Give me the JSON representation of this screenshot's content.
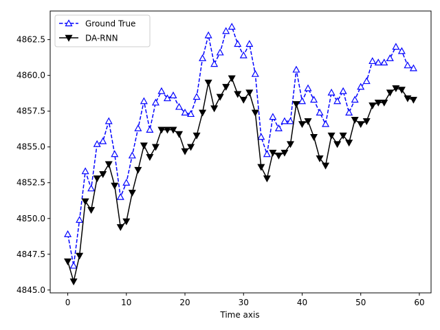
{
  "chart_data": {
    "type": "line",
    "title": "",
    "xlabel": "Time axis",
    "ylabel": "",
    "xlim": [
      -3,
      62
    ],
    "ylim": [
      4844.8,
      4864.5
    ],
    "xticks": [
      0,
      10,
      20,
      30,
      40,
      50,
      60
    ],
    "yticks": [
      4845.0,
      4847.5,
      4850.0,
      4852.5,
      4855.0,
      4857.5,
      4860.0,
      4862.5
    ],
    "grid": false,
    "legend": "upper-left",
    "x": [
      0,
      1,
      2,
      3,
      4,
      5,
      6,
      7,
      8,
      9,
      10,
      11,
      12,
      13,
      14,
      15,
      16,
      17,
      18,
      19,
      20,
      21,
      22,
      23,
      24,
      25,
      26,
      27,
      28,
      29,
      30,
      31,
      32,
      33,
      34,
      35,
      36,
      37,
      38,
      39,
      40,
      41,
      42,
      43,
      44,
      45,
      46,
      47,
      48,
      49,
      50,
      51,
      52,
      53,
      54,
      55,
      56,
      57,
      58,
      59
    ],
    "series": [
      {
        "name": "Ground True",
        "color": "#0000ff",
        "style": "dashed",
        "marker": "triangle-up-open",
        "values": [
          4848.9,
          4846.7,
          4849.9,
          4853.3,
          4852.1,
          4855.2,
          4855.4,
          4856.8,
          4854.5,
          4851.5,
          4852.5,
          4854.4,
          4856.3,
          4858.2,
          4856.2,
          4858.1,
          4858.9,
          4858.4,
          4858.6,
          4857.8,
          4857.4,
          4857.3,
          4858.5,
          4861.2,
          4862.8,
          4860.8,
          4861.6,
          4863.1,
          4863.4,
          4862.2,
          4861.4,
          4862.2,
          4860.1,
          4855.7,
          4854.5,
          4857.1,
          4856.3,
          4856.8,
          4856.8,
          4860.4,
          4858.2,
          4859.1,
          4858.3,
          4857.4,
          4856.6,
          4858.8,
          4858.2,
          4858.9,
          4857.4,
          4858.3,
          4859.2,
          4859.6,
          4861.0,
          4860.9,
          4860.9,
          4861.2,
          4862.0,
          4861.7,
          4860.7,
          4860.5
        ]
      },
      {
        "name": "DA-RNN",
        "color": "#000000",
        "style": "solid",
        "marker": "triangle-down-filled",
        "values": [
          4847.0,
          4845.6,
          4847.4,
          4851.2,
          4850.6,
          4852.8,
          4853.1,
          4853.8,
          4852.3,
          4849.4,
          4849.8,
          4851.8,
          4853.4,
          4855.1,
          4854.3,
          4855.0,
          4856.2,
          4856.2,
          4856.2,
          4855.9,
          4854.7,
          4855.0,
          4855.8,
          4857.4,
          4859.5,
          4857.7,
          4858.5,
          4859.2,
          4859.8,
          4858.7,
          4858.3,
          4858.8,
          4857.4,
          4853.6,
          4852.8,
          4854.6,
          4854.4,
          4854.6,
          4855.2,
          4858.0,
          4856.6,
          4856.8,
          4855.7,
          4854.2,
          4853.7,
          4855.8,
          4855.2,
          4855.8,
          4855.3,
          4856.9,
          4856.6,
          4856.8,
          4857.9,
          4858.1,
          4858.1,
          4858.8,
          4859.1,
          4859.0,
          4858.4,
          4858.3
        ]
      }
    ]
  }
}
